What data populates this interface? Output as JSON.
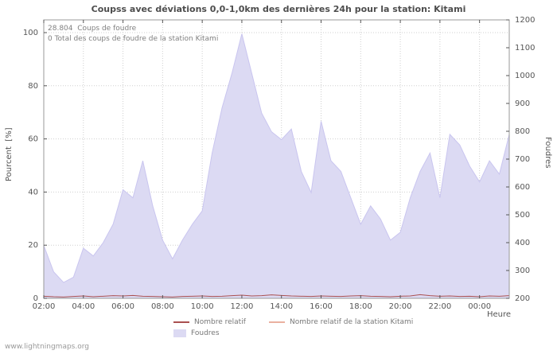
{
  "title": "Coupss avec déviations 0,0-1,0km des dernières 24h pour la station: Kitami",
  "annotations": {
    "total_strikes": "28.804  Coups de foudre",
    "station_total": "0 Total des coups de foudre de la station Kitami"
  },
  "axes": {
    "left_label": "Pourcent  [%]",
    "right_label": "Foudres",
    "x_label": "Heure"
  },
  "legend": {
    "items": [
      {
        "label": "Nombre relatif",
        "color": "#aa5050",
        "swatch": "line"
      },
      {
        "label": "Nombre relatif de la station Kitami",
        "color": "#eab0a0",
        "swatch": "line"
      },
      {
        "label": "Foudres",
        "color": "#dcdaf3",
        "swatch": "area"
      }
    ]
  },
  "watermark": "www.lightningmaps.org",
  "colors": {
    "area_fill": "#dcdaf3",
    "area_edge": "#c9c5ef",
    "line_relative": "#aa5050",
    "line_station": "#eab0a0",
    "grid": "#cfcfcf",
    "frame": "#999999",
    "text": "#555555"
  },
  "chart_data": {
    "type": "area",
    "title": "Coupss avec déviations 0,0-1,0km des dernières 24h pour la station: Kitami",
    "xlabel": "Heure",
    "ylabel_left": "Pourcent [%]",
    "ylabel_right": "Foudres",
    "grid": true,
    "legend_position": "bottom",
    "ylim_left": [
      0,
      100
    ],
    "yticks_left": [
      0,
      20,
      40,
      60,
      80,
      100
    ],
    "ylim_right": [
      200,
      1200
    ],
    "yticks_right": [
      200,
      300,
      400,
      500,
      600,
      700,
      800,
      900,
      1000,
      1100,
      1200
    ],
    "x_ticks": [
      "02:00",
      "04:00",
      "06:00",
      "08:00",
      "10:00",
      "12:00",
      "14:00",
      "16:00",
      "18:00",
      "20:00",
      "22:00",
      "00:00"
    ],
    "x_tick_step_points": 4,
    "x": [
      "02:00",
      "02:30",
      "03:00",
      "03:30",
      "04:00",
      "04:30",
      "05:00",
      "05:30",
      "06:00",
      "06:30",
      "07:00",
      "07:30",
      "08:00",
      "08:30",
      "09:00",
      "09:30",
      "10:00",
      "10:30",
      "11:00",
      "11:30",
      "12:00",
      "12:30",
      "13:00",
      "13:30",
      "14:00",
      "14:30",
      "15:00",
      "15:30",
      "16:00",
      "16:30",
      "17:00",
      "17:30",
      "18:00",
      "18:30",
      "19:00",
      "19:30",
      "20:00",
      "20:30",
      "21:00",
      "21:30",
      "22:00",
      "22:30",
      "23:00",
      "23:30",
      "00:00",
      "00:30",
      "01:00",
      "01:30"
    ],
    "series": [
      {
        "name": "Foudres",
        "render": "area",
        "axis": "right",
        "color": "#dcdaf3",
        "values": [
          390,
          295,
          257,
          276,
          380,
          352,
          400,
          466,
          590,
          561,
          694,
          532,
          409,
          342,
          409,
          466,
          514,
          722,
          884,
          1008,
          1150,
          1008,
          865,
          798,
          770,
          808,
          656,
          580,
          836,
          694,
          656,
          561,
          466,
          532,
          485,
          409,
          437,
          561,
          656,
          722,
          561,
          789,
          751,
          675,
          618,
          694,
          646,
          789
        ]
      },
      {
        "name": "Nombre relatif",
        "render": "line",
        "axis": "left",
        "color": "#aa5050",
        "values": [
          0.8,
          0.6,
          0.5,
          0.7,
          0.9,
          0.6,
          0.8,
          1.0,
          0.9,
          1.1,
          0.8,
          0.7,
          0.6,
          0.5,
          0.7,
          0.8,
          0.9,
          0.7,
          0.8,
          1.0,
          1.2,
          0.9,
          1.0,
          1.3,
          1.1,
          0.9,
          0.8,
          0.7,
          0.9,
          0.8,
          0.7,
          0.9,
          1.0,
          0.8,
          0.7,
          0.6,
          0.8,
          0.9,
          1.4,
          1.0,
          0.8,
          0.9,
          0.7,
          0.8,
          0.6,
          0.9,
          0.8,
          1.0
        ]
      },
      {
        "name": "Nombre relatif de la station Kitami",
        "render": "line",
        "axis": "left",
        "color": "#eab0a0",
        "values": [
          0,
          0,
          0,
          0,
          0,
          0,
          0,
          0,
          0,
          0,
          0,
          0,
          0,
          0,
          0,
          0,
          0,
          0,
          0,
          0,
          0,
          0,
          0,
          0,
          0,
          0,
          0,
          0,
          0,
          0,
          0,
          0,
          0,
          0,
          0,
          0,
          0,
          0,
          0,
          0,
          0,
          0,
          0,
          0,
          0,
          0,
          0,
          0
        ]
      }
    ]
  }
}
